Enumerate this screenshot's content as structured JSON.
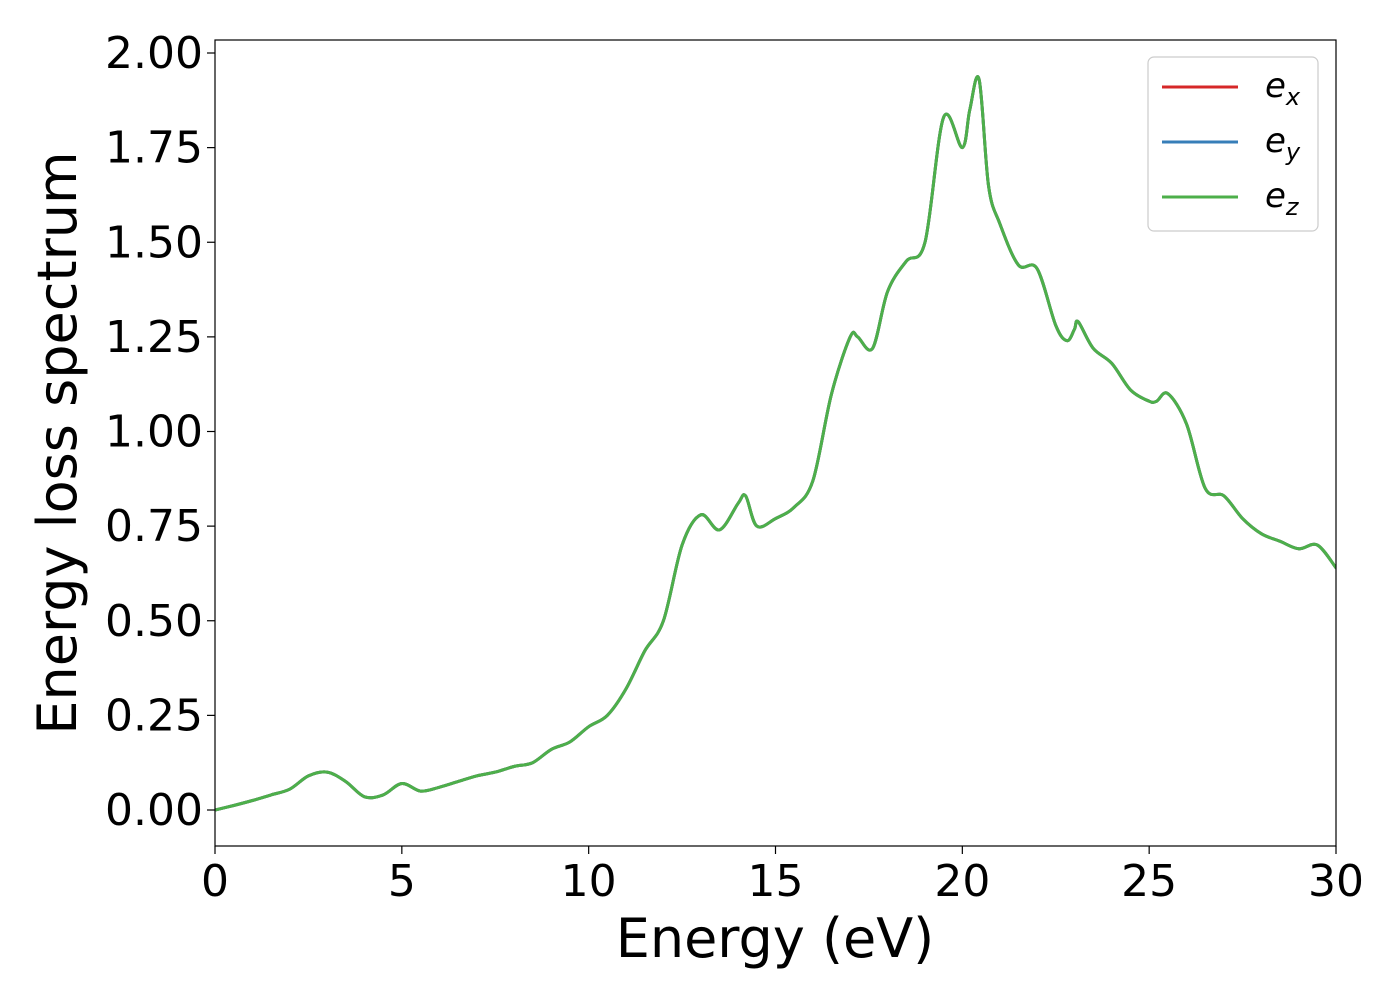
{
  "chart_data": {
    "type": "line",
    "title": "",
    "xlabel": "Energy (eV)",
    "ylabel": "Energy loss spectrum",
    "xlim": [
      0,
      30
    ],
    "ylim": [
      -0.1,
      2.03
    ],
    "grid": false,
    "legend_position": "top-right",
    "x_ticks": [
      "0",
      "5",
      "10",
      "15",
      "20",
      "25",
      "30"
    ],
    "y_ticks": [
      "0.00",
      "0.25",
      "0.50",
      "0.75",
      "1.00",
      "1.25",
      "1.50",
      "1.75",
      "2.00"
    ],
    "x_tick_values": [
      0,
      5,
      10,
      15,
      20,
      25,
      30
    ],
    "y_tick_values": [
      0,
      0.25,
      0.5,
      0.75,
      1.0,
      1.25,
      1.5,
      1.75,
      2.0
    ],
    "x": [
      0,
      0.5,
      1.0,
      1.5,
      2.0,
      2.5,
      3.0,
      3.5,
      4.0,
      4.5,
      5.0,
      5.5,
      6.0,
      6.5,
      7.0,
      7.5,
      8.0,
      8.5,
      9.0,
      9.5,
      10.0,
      10.5,
      11.0,
      11.5,
      12.0,
      12.5,
      13.0,
      13.5,
      14.0,
      14.2,
      14.5,
      15.0,
      15.5,
      16.0,
      16.5,
      17.0,
      17.2,
      17.6,
      18.0,
      18.5,
      19.0,
      19.5,
      20.0,
      20.2,
      20.45,
      20.7,
      21.0,
      21.5,
      22.0,
      22.5,
      22.8,
      23.0,
      23.1,
      23.5,
      24.0,
      24.5,
      25.0,
      25.2,
      25.5,
      26.0,
      26.5,
      27.0,
      27.5,
      28.0,
      28.5,
      29.0,
      29.5,
      30.0
    ],
    "series": [
      {
        "name": "e_x",
        "color": "#d62728",
        "values": [
          0.0,
          0.012,
          0.025,
          0.04,
          0.055,
          0.09,
          0.1,
          0.075,
          0.035,
          0.04,
          0.07,
          0.05,
          0.06,
          0.075,
          0.09,
          0.1,
          0.115,
          0.125,
          0.16,
          0.18,
          0.22,
          0.25,
          0.32,
          0.42,
          0.5,
          0.7,
          0.78,
          0.74,
          0.81,
          0.83,
          0.75,
          0.77,
          0.8,
          0.87,
          1.1,
          1.25,
          1.25,
          1.22,
          1.37,
          1.45,
          1.5,
          1.83,
          1.75,
          1.85,
          1.93,
          1.65,
          1.55,
          1.44,
          1.43,
          1.28,
          1.24,
          1.27,
          1.29,
          1.22,
          1.18,
          1.11,
          1.08,
          1.08,
          1.1,
          1.02,
          0.85,
          0.83,
          0.77,
          0.73,
          0.71,
          0.69,
          0.7,
          0.64
        ]
      },
      {
        "name": "e_y",
        "color": "#377eb8",
        "values": [
          0.0,
          0.012,
          0.025,
          0.04,
          0.055,
          0.09,
          0.1,
          0.075,
          0.035,
          0.04,
          0.07,
          0.05,
          0.06,
          0.075,
          0.09,
          0.1,
          0.115,
          0.125,
          0.16,
          0.18,
          0.22,
          0.25,
          0.32,
          0.42,
          0.5,
          0.7,
          0.78,
          0.74,
          0.81,
          0.83,
          0.75,
          0.77,
          0.8,
          0.87,
          1.1,
          1.25,
          1.25,
          1.22,
          1.37,
          1.45,
          1.5,
          1.83,
          1.75,
          1.85,
          1.93,
          1.65,
          1.55,
          1.44,
          1.43,
          1.28,
          1.24,
          1.27,
          1.29,
          1.22,
          1.18,
          1.11,
          1.08,
          1.08,
          1.1,
          1.02,
          0.85,
          0.83,
          0.77,
          0.73,
          0.71,
          0.69,
          0.7,
          0.64
        ]
      },
      {
        "name": "e_z",
        "color": "#4daf4a",
        "values": [
          0.0,
          0.012,
          0.025,
          0.04,
          0.055,
          0.09,
          0.1,
          0.075,
          0.035,
          0.04,
          0.07,
          0.05,
          0.06,
          0.075,
          0.09,
          0.1,
          0.115,
          0.125,
          0.16,
          0.18,
          0.22,
          0.25,
          0.32,
          0.42,
          0.5,
          0.7,
          0.78,
          0.74,
          0.81,
          0.83,
          0.75,
          0.77,
          0.8,
          0.87,
          1.1,
          1.25,
          1.25,
          1.22,
          1.37,
          1.45,
          1.5,
          1.83,
          1.75,
          1.85,
          1.93,
          1.65,
          1.55,
          1.44,
          1.43,
          1.28,
          1.24,
          1.27,
          1.29,
          1.22,
          1.18,
          1.11,
          1.08,
          1.08,
          1.1,
          1.02,
          0.85,
          0.83,
          0.77,
          0.73,
          0.71,
          0.69,
          0.7,
          0.64
        ]
      }
    ],
    "legend": [
      {
        "base": "e",
        "sub": "x",
        "color": "#d62728"
      },
      {
        "base": "e",
        "sub": "y",
        "color": "#377eb8"
      },
      {
        "base": "e",
        "sub": "z",
        "color": "#4daf4a"
      }
    ]
  }
}
